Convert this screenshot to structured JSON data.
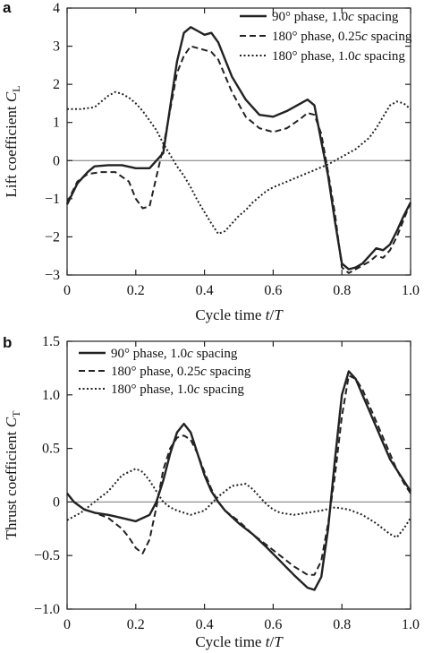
{
  "chart_data": [
    {
      "panel_label": "a",
      "type": "line",
      "xlabel": "Cycle time t/T",
      "ylabel": "Lift coefficient C_L",
      "xlim": [
        0,
        1.0
      ],
      "ylim": [
        -3,
        4
      ],
      "xticks": [
        "0",
        "0.2",
        "0.4",
        "0.6",
        "0.8",
        "1.0"
      ],
      "yticks": [
        "−3",
        "−2",
        "−1",
        "0",
        "1",
        "2",
        "3",
        "4"
      ],
      "zero_line": true,
      "legend_position": "top-right",
      "series": [
        {
          "name": "90° phase, 1.0c spacing",
          "style": "solid",
          "x": [
            0,
            0.03,
            0.06,
            0.08,
            0.12,
            0.16,
            0.2,
            0.24,
            0.28,
            0.32,
            0.34,
            0.36,
            0.38,
            0.4,
            0.42,
            0.44,
            0.48,
            0.52,
            0.56,
            0.6,
            0.64,
            0.68,
            0.7,
            0.72,
            0.74,
            0.76,
            0.78,
            0.8,
            0.82,
            0.84,
            0.86,
            0.88,
            0.9,
            0.92,
            0.94,
            0.96,
            0.98,
            1.0
          ],
          "y": [
            -1.15,
            -0.6,
            -0.3,
            -0.15,
            -0.12,
            -0.12,
            -0.2,
            -0.2,
            0.2,
            2.6,
            3.35,
            3.5,
            3.4,
            3.3,
            3.35,
            3.1,
            2.2,
            1.6,
            1.2,
            1.15,
            1.3,
            1.5,
            1.6,
            1.45,
            0.5,
            -0.4,
            -1.6,
            -2.7,
            -2.85,
            -2.8,
            -2.7,
            -2.5,
            -2.3,
            -2.35,
            -2.2,
            -1.85,
            -1.45,
            -1.1
          ]
        },
        {
          "name": "180° phase, 0.25c spacing",
          "style": "dashed",
          "x": [
            0,
            0.03,
            0.06,
            0.1,
            0.14,
            0.18,
            0.2,
            0.22,
            0.24,
            0.28,
            0.32,
            0.34,
            0.36,
            0.38,
            0.4,
            0.42,
            0.44,
            0.48,
            0.52,
            0.56,
            0.6,
            0.64,
            0.68,
            0.7,
            0.72,
            0.74,
            0.76,
            0.78,
            0.8,
            0.82,
            0.84,
            0.86,
            0.88,
            0.9,
            0.92,
            0.94,
            0.96,
            1.0
          ],
          "y": [
            -1.1,
            -0.55,
            -0.35,
            -0.3,
            -0.3,
            -0.55,
            -1.0,
            -1.25,
            -1.2,
            0.35,
            2.3,
            2.75,
            3.0,
            2.95,
            2.9,
            2.85,
            2.65,
            1.8,
            1.15,
            0.85,
            0.75,
            0.85,
            1.1,
            1.25,
            1.2,
            0.7,
            -0.3,
            -1.4,
            -2.8,
            -2.95,
            -2.85,
            -2.75,
            -2.65,
            -2.5,
            -2.55,
            -2.35,
            -2.0,
            -1.1
          ]
        },
        {
          "name": "180° phase, 1.0c spacing",
          "style": "dotted",
          "x": [
            0,
            0.04,
            0.08,
            0.12,
            0.14,
            0.16,
            0.18,
            0.2,
            0.22,
            0.24,
            0.26,
            0.28,
            0.3,
            0.32,
            0.34,
            0.36,
            0.38,
            0.4,
            0.42,
            0.44,
            0.46,
            0.48,
            0.5,
            0.52,
            0.54,
            0.56,
            0.58,
            0.6,
            0.64,
            0.68,
            0.72,
            0.76,
            0.8,
            0.84,
            0.88,
            0.9,
            0.92,
            0.94,
            0.96,
            0.98,
            1.0
          ],
          "y": [
            1.35,
            1.35,
            1.4,
            1.7,
            1.8,
            1.75,
            1.65,
            1.5,
            1.3,
            1.05,
            0.8,
            0.45,
            0.15,
            -0.15,
            -0.4,
            -0.7,
            -1.05,
            -1.35,
            -1.65,
            -1.92,
            -1.85,
            -1.65,
            -1.45,
            -1.3,
            -1.1,
            -0.95,
            -0.8,
            -0.7,
            -0.55,
            -0.4,
            -0.25,
            -0.1,
            0.1,
            0.3,
            0.6,
            0.85,
            1.15,
            1.45,
            1.55,
            1.5,
            1.35
          ]
        }
      ]
    },
    {
      "panel_label": "b",
      "type": "line",
      "xlabel": "Cycle time t/T",
      "ylabel": "Thrust coefficient C_T",
      "xlim": [
        0,
        1.0
      ],
      "ylim": [
        -1.0,
        1.5
      ],
      "xticks": [
        "0",
        "0.2",
        "0.4",
        "0.6",
        "0.8",
        "1.0"
      ],
      "yticks": [
        "−1.0",
        "−0.5",
        "0",
        "0.5",
        "1.0",
        "1.5"
      ],
      "zero_line": true,
      "legend_position": "top-left",
      "series": [
        {
          "name": "90° phase, 1.0c spacing",
          "style": "solid",
          "x": [
            0,
            0.02,
            0.05,
            0.08,
            0.12,
            0.16,
            0.2,
            0.24,
            0.26,
            0.28,
            0.3,
            0.32,
            0.34,
            0.36,
            0.38,
            0.4,
            0.42,
            0.44,
            0.46,
            0.5,
            0.54,
            0.58,
            0.62,
            0.66,
            0.7,
            0.72,
            0.74,
            0.76,
            0.78,
            0.8,
            0.82,
            0.84,
            0.86,
            0.88,
            0.9,
            0.92,
            0.94,
            0.96,
            0.98,
            1.0
          ],
          "y": [
            0.08,
            0.0,
            -0.07,
            -0.1,
            -0.12,
            -0.15,
            -0.18,
            -0.12,
            0.0,
            0.2,
            0.45,
            0.65,
            0.73,
            0.65,
            0.45,
            0.25,
            0.1,
            0.0,
            -0.08,
            -0.2,
            -0.3,
            -0.42,
            -0.55,
            -0.68,
            -0.8,
            -0.82,
            -0.7,
            -0.25,
            0.4,
            1.0,
            1.22,
            1.15,
            1.0,
            0.85,
            0.7,
            0.55,
            0.4,
            0.3,
            0.2,
            0.1
          ]
        },
        {
          "name": "180° phase, 0.25c spacing",
          "style": "dashed",
          "x": [
            0,
            0.02,
            0.05,
            0.08,
            0.12,
            0.16,
            0.18,
            0.2,
            0.22,
            0.24,
            0.26,
            0.28,
            0.3,
            0.32,
            0.34,
            0.36,
            0.38,
            0.4,
            0.42,
            0.44,
            0.46,
            0.5,
            0.54,
            0.58,
            0.62,
            0.66,
            0.7,
            0.72,
            0.74,
            0.76,
            0.78,
            0.8,
            0.82,
            0.84,
            0.86,
            0.88,
            0.9,
            0.92,
            0.94,
            0.96,
            0.98,
            1.0
          ],
          "y": [
            0.08,
            0.0,
            -0.07,
            -0.1,
            -0.15,
            -0.25,
            -0.33,
            -0.43,
            -0.48,
            -0.35,
            -0.05,
            0.3,
            0.5,
            0.6,
            0.62,
            0.58,
            0.45,
            0.28,
            0.12,
            0.0,
            -0.08,
            -0.18,
            -0.3,
            -0.4,
            -0.5,
            -0.6,
            -0.68,
            -0.68,
            -0.55,
            -0.2,
            0.25,
            0.8,
            1.18,
            1.15,
            1.05,
            0.9,
            0.75,
            0.6,
            0.45,
            0.3,
            0.18,
            0.08
          ]
        },
        {
          "name": "180° phase, 1.0c spacing",
          "style": "dotted",
          "x": [
            0,
            0.04,
            0.08,
            0.12,
            0.16,
            0.2,
            0.22,
            0.24,
            0.26,
            0.28,
            0.3,
            0.32,
            0.36,
            0.4,
            0.44,
            0.48,
            0.52,
            0.54,
            0.56,
            0.58,
            0.6,
            0.62,
            0.66,
            0.7,
            0.74,
            0.78,
            0.82,
            0.86,
            0.9,
            0.94,
            0.96,
            0.98,
            1.0
          ],
          "y": [
            -0.17,
            -0.1,
            0.0,
            0.1,
            0.25,
            0.31,
            0.28,
            0.2,
            0.1,
            0.0,
            -0.05,
            -0.08,
            -0.12,
            -0.08,
            0.05,
            0.15,
            0.17,
            0.12,
            0.05,
            -0.02,
            -0.07,
            -0.1,
            -0.12,
            -0.1,
            -0.08,
            -0.05,
            -0.07,
            -0.12,
            -0.2,
            -0.3,
            -0.33,
            -0.25,
            -0.15
          ]
        }
      ]
    }
  ]
}
